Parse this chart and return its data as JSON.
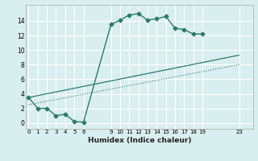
{
  "xlabel": "Humidex (Indice chaleur)",
  "bg_color": "#d9eeee",
  "grid_color": "#ffffff",
  "line_color": "#2d7a6e",
  "xticks": [
    0,
    1,
    2,
    3,
    4,
    5,
    6,
    9,
    10,
    11,
    12,
    13,
    14,
    15,
    16,
    17,
    18,
    19,
    23
  ],
  "yticks": [
    0,
    2,
    4,
    6,
    8,
    10,
    12,
    14
  ],
  "xlim": [
    -0.3,
    24.5
  ],
  "ylim": [
    -0.8,
    16.2
  ],
  "series_main": {
    "x": [
      0,
      1,
      2,
      3,
      4,
      5,
      6,
      9,
      10,
      11,
      12,
      13,
      14,
      15,
      16,
      17,
      18,
      19
    ],
    "y": [
      3.5,
      2.0,
      2.0,
      1.0,
      1.2,
      0.2,
      0.1,
      13.5,
      14.1,
      14.8,
      15.0,
      14.1,
      14.3,
      14.6,
      13.0,
      12.8,
      12.2,
      12.2
    ]
  },
  "series_solid": {
    "x": [
      0,
      23
    ],
    "y": [
      3.5,
      9.3
    ]
  },
  "series_dotted1": {
    "x": [
      0,
      23
    ],
    "y": [
      3.5,
      9.3
    ]
  },
  "series_dotted2": {
    "x": [
      0,
      23
    ],
    "y": [
      2.5,
      8.0
    ]
  }
}
